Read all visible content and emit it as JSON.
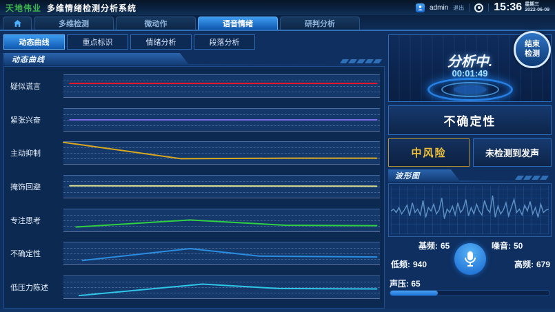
{
  "header": {
    "logo": "天地伟业",
    "title": "多维情绪检测分析系统",
    "user": {
      "name": "admin",
      "logout": "退出"
    },
    "clock": {
      "time": "15:36",
      "weekday": "星期三",
      "date": "2022-06-09"
    }
  },
  "nav_tabs": [
    {
      "label": "多维检测",
      "active": false
    },
    {
      "label": "微动作",
      "active": false
    },
    {
      "label": "语音情绪",
      "active": true
    },
    {
      "label": "研判分析",
      "active": false
    }
  ],
  "sub_tabs": [
    {
      "label": "动态曲线",
      "active": true
    },
    {
      "label": "重点标识",
      "active": false
    },
    {
      "label": "情绪分析",
      "active": false
    },
    {
      "label": "段落分析",
      "active": false
    }
  ],
  "left_panel": {
    "section_title": "动态曲线"
  },
  "chart_data": {
    "type": "line",
    "title": "动态曲线",
    "xlabel": "",
    "ylabel": "",
    "grid": "dashed horizontal bands, no axis ticks",
    "legend_position": "row labels at left",
    "series": [
      {
        "name": "疑似谎言",
        "color": "#e8192c",
        "points": [
          [
            2,
            38
          ],
          [
            99,
            38
          ]
        ]
      },
      {
        "name": "紧张兴奋",
        "color": "#7d6ae8",
        "points": [
          [
            2,
            50
          ],
          [
            99,
            50
          ]
        ]
      },
      {
        "name": "主动抑制",
        "color": "#d9a81d",
        "points": [
          [
            0,
            2
          ],
          [
            37,
            76
          ],
          [
            70,
            74
          ],
          [
            99,
            74
          ]
        ]
      },
      {
        "name": "掩饰回避",
        "color": "#d9dc8e",
        "points": [
          [
            2,
            46
          ],
          [
            99,
            48
          ]
        ]
      },
      {
        "name": "专注思考",
        "color": "#2fd141",
        "points": [
          [
            4,
            80
          ],
          [
            40,
            48
          ],
          [
            70,
            72
          ],
          [
            99,
            74
          ]
        ]
      },
      {
        "name": "不确定性",
        "color": "#2a8de0",
        "points": [
          [
            6,
            82
          ],
          [
            40,
            28
          ],
          [
            62,
            62
          ],
          [
            99,
            66
          ]
        ]
      },
      {
        "name": "低压力陈述",
        "color": "#2fc6e8",
        "points": [
          [
            5,
            88
          ],
          [
            44,
            36
          ],
          [
            68,
            56
          ],
          [
            99,
            58
          ]
        ]
      }
    ]
  },
  "analysis": {
    "status": "分析中.",
    "timer": "00:01:49",
    "stop_button_line1": "结束",
    "stop_button_line2": "检测",
    "primary_emotion": "不确定性",
    "risk_level": "中风险",
    "voice_status": "未检测到发声"
  },
  "waveform": {
    "section_title": "波形图",
    "color": "#5b8fc4",
    "points": [
      52,
      48,
      55,
      45,
      58,
      50,
      40,
      62,
      35,
      55,
      48,
      60,
      30,
      65,
      45,
      52,
      38,
      58,
      50,
      25,
      68,
      48,
      55,
      42,
      60,
      35,
      55,
      48,
      28,
      62,
      45,
      58,
      38,
      52,
      60,
      30,
      48,
      55,
      20,
      65,
      42,
      58,
      50,
      35,
      62,
      45,
      28,
      55,
      48,
      60,
      40,
      52,
      32,
      58,
      45,
      65,
      38,
      55,
      50,
      48
    ],
    "stats": [
      {
        "label": "基频:",
        "value": "65"
      },
      {
        "label": "噪音:",
        "value": "50"
      },
      {
        "label": "低频:",
        "value": "940"
      },
      {
        "label": "高频:",
        "value": "679"
      }
    ],
    "sound_pressure": {
      "label": "声压:",
      "value": "65",
      "percent": 30
    }
  },
  "colors": {
    "accent_blue": "#2a8ae8",
    "risk_yellow": "#f2c23a",
    "logo_green": "#3cb54a",
    "panel_border": "#2e6cb8",
    "background": "#0e2f60"
  }
}
